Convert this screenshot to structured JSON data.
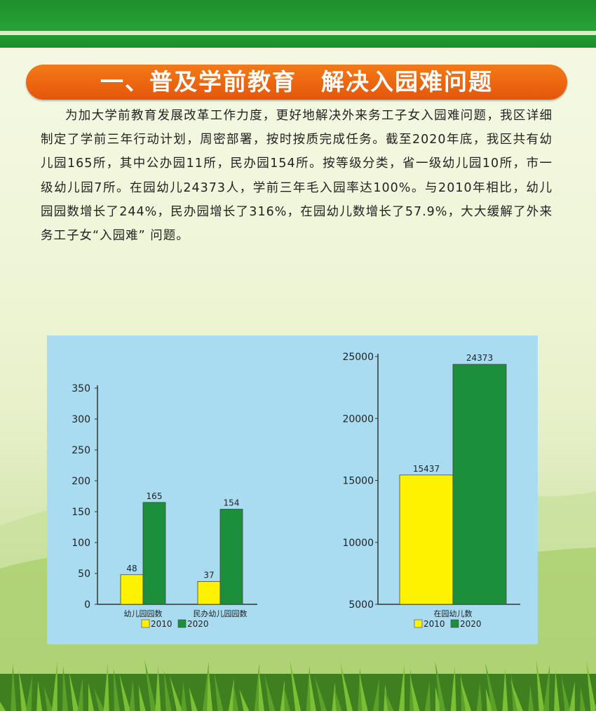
{
  "header": {
    "title": "一、普及学前教育　解决入园难问题"
  },
  "article": {
    "paragraph": "为加大学前教育发展改革工作力度，更好地解决外来务工子女入园难问题，我区详细制定了学前三年行动计划，周密部署，按时按质完成任务。截至2020年底，我区共有幼儿园165所，其中公办园11所，民办园154所。按等级分类，省一级幼儿园10所，市一级幼儿园7所。在园幼儿24373人，学前三年毛入园率达100%。与2010年相比，幼儿园园数增长了244%，民办园增长了316%，在园幼儿数增长了57.9%，大大缓解了外来务工子女“入园难” 问题。"
  },
  "colors": {
    "series_2010": "#fff200",
    "series_2020": "#1c8f3a"
  },
  "chart_data": [
    {
      "type": "bar",
      "categories": [
        "幼儿园园数",
        "民办幼儿园园数"
      ],
      "series": [
        {
          "name": "2010",
          "values": [
            48,
            37
          ]
        },
        {
          "name": "2020",
          "values": [
            165,
            154
          ]
        }
      ],
      "data_labels": [
        [
          "48",
          "37"
        ],
        [
          "165",
          "154"
        ]
      ],
      "yticks": [
        "0",
        "50",
        "100",
        "150",
        "200",
        "250",
        "300",
        "350"
      ],
      "ylim": [
        0,
        350
      ],
      "legend": "bottom"
    },
    {
      "type": "bar",
      "categories": [
        "在园幼儿数"
      ],
      "series": [
        {
          "name": "2010",
          "values": [
            15437
          ]
        },
        {
          "name": "2020",
          "values": [
            24373
          ]
        }
      ],
      "data_labels": [
        [
          "15437"
        ],
        [
          "24373"
        ]
      ],
      "yticks": [
        "5000",
        "10000",
        "15000",
        "20000",
        "25000"
      ],
      "ylim": [
        5000,
        25000
      ],
      "legend": "bottom"
    }
  ]
}
